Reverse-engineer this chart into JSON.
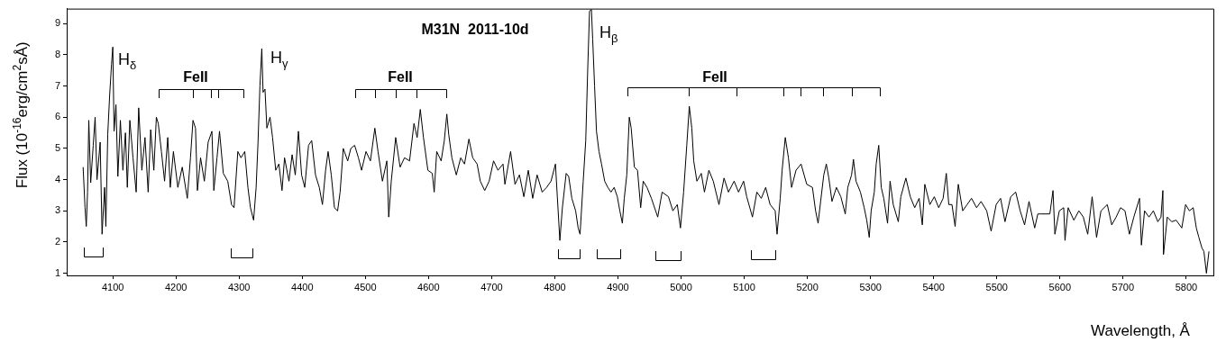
{
  "chart_data": {
    "type": "line",
    "title": "M31N  2011-10d",
    "xlabel": "Wavelength, Å",
    "ylabel": "Flux (10$^{-16}$erg/cm$^{2}$sÅ)",
    "series": [
      {
        "color": "#000000",
        "x": [
          4053,
          4056,
          4058,
          4060,
          4062,
          4065,
          4069,
          4072,
          4075,
          4080,
          4083,
          4087,
          4089,
          4092,
          4095,
          4098,
          4100,
          4102,
          4105,
          4108,
          4112,
          4116,
          4120,
          4123,
          4127,
          4132,
          4137,
          4141,
          4146,
          4151,
          4156,
          4160,
          4165,
          4169,
          4172,
          4177,
          4182,
          4187,
          4191,
          4196,
          4203,
          4210,
          4218,
          4223,
          4227,
          4231,
          4234,
          4239,
          4245,
          4251,
          4257,
          4260,
          4265,
          4269,
          4275,
          4282,
          4288,
          4292,
          4298,
          4303,
          4309,
          4314,
          4318,
          4323,
          4327,
          4330,
          4333,
          4336,
          4338,
          4341,
          4344,
          4349,
          4353,
          4358,
          4363,
          4368,
          4372,
          4379,
          4384,
          4389,
          4394,
          4399,
          4404,
          4410,
          4415,
          4421,
          4427,
          4432,
          4437,
          4441,
          4446,
          4451,
          4456,
          4460,
          4465,
          4472,
          4477,
          4483,
          4489,
          4494,
          4501,
          4508,
          4515,
          4520,
          4527,
          4534,
          4537,
          4541,
          4548,
          4555,
          4562,
          4570,
          4577,
          4582,
          4587,
          4592,
          4599,
          4606,
          4609,
          4613,
          4620,
          4625,
          4629,
          4632,
          4637,
          4644,
          4651,
          4657,
          4664,
          4670,
          4677,
          4682,
          4689,
          4696,
          4703,
          4710,
          4718,
          4721,
          4730,
          4737,
          4744,
          4751,
          4758,
          4765,
          4772,
          4780,
          4787,
          4794,
          4801,
          4804,
          4808,
          4812,
          4818,
          4822,
          4827,
          4833,
          4837,
          4840,
          4845,
          4849,
          4852,
          4855,
          4858,
          4860,
          4863,
          4866,
          4870,
          4874,
          4879,
          4884,
          4889,
          4894,
          4899,
          4903,
          4907,
          4910,
          4914,
          4918,
          4921,
          4926,
          4931,
          4936,
          4940,
          4946,
          4953,
          4963,
          4970,
          4980,
          4987,
          4994,
          4999,
          5004,
          5009,
          5013,
          5017,
          5020,
          5025,
          5032,
          5037,
          5044,
          5051,
          5060,
          5068,
          5075,
          5084,
          5091,
          5099,
          5104,
          5113,
          5120,
          5127,
          5134,
          5141,
          5149,
          5152,
          5157,
          5160,
          5165,
          5170,
          5175,
          5182,
          5190,
          5199,
          5208,
          5213,
          5217,
          5221,
          5226,
          5230,
          5234,
          5239,
          5246,
          5253,
          5260,
          5264,
          5270,
          5273,
          5277,
          5284,
          5290,
          5294,
          5298,
          5301,
          5306,
          5309,
          5313,
          5317,
          5321,
          5327,
          5331,
          5336,
          5344,
          5348,
          5356,
          5363,
          5370,
          5377,
          5382,
          5386,
          5394,
          5401,
          5408,
          5415,
          5420,
          5424,
          5429,
          5434,
          5439,
          5446,
          5453,
          5460,
          5468,
          5475,
          5484,
          5491,
          5499,
          5506,
          5513,
          5522,
          5530,
          5537,
          5544,
          5551,
          5560,
          5565,
          5570,
          5584,
          5589,
          5592,
          5599,
          5606,
          5608,
          5613,
          5622,
          5630,
          5637,
          5644,
          5651,
          5658,
          5665,
          5675,
          5682,
          5689,
          5696,
          5703,
          5710,
          5717,
          5726,
          5729,
          5734,
          5741,
          5748,
          5755,
          5760,
          5763,
          5764,
          5770,
          5777,
          5784,
          5793,
          5799,
          5805,
          5811,
          5816,
          5820,
          5825,
          5828,
          5832,
          5836
        ],
        "values": [
          4.4,
          3.1,
          2.5,
          3.6,
          5.9,
          3.9,
          5.1,
          6.0,
          4.0,
          5.2,
          2.25,
          3.75,
          2.5,
          5.45,
          6.7,
          7.7,
          8.25,
          5.55,
          6.4,
          4.1,
          5.9,
          4.3,
          5.5,
          3.75,
          5.9,
          4.7,
          3.6,
          6.3,
          4.3,
          5.35,
          3.6,
          5.6,
          4.3,
          6.0,
          5.8,
          4.9,
          3.95,
          5.35,
          3.75,
          4.9,
          3.75,
          4.4,
          3.4,
          4.7,
          5.9,
          5.65,
          3.65,
          4.7,
          3.95,
          5.2,
          5.55,
          3.65,
          4.7,
          5.55,
          4.2,
          3.95,
          3.2,
          3.1,
          4.9,
          4.7,
          4.9,
          3.75,
          3.1,
          2.7,
          3.75,
          5.2,
          7.0,
          8.2,
          6.8,
          6.9,
          5.65,
          6.0,
          5.35,
          4.3,
          4.5,
          3.65,
          4.7,
          3.95,
          4.8,
          4.15,
          5.55,
          4.15,
          3.75,
          5.1,
          5.25,
          4.15,
          3.75,
          3.2,
          4.3,
          4.9,
          4.15,
          3.1,
          3.0,
          3.6,
          5.0,
          4.6,
          5.0,
          5.1,
          4.7,
          4.3,
          4.9,
          4.6,
          5.65,
          4.9,
          3.95,
          4.6,
          2.8,
          3.95,
          5.35,
          4.4,
          4.7,
          4.6,
          5.8,
          5.35,
          6.25,
          5.35,
          4.3,
          4.2,
          3.6,
          4.9,
          4.6,
          5.25,
          6.1,
          5.45,
          4.7,
          4.15,
          4.7,
          4.5,
          5.3,
          4.7,
          4.5,
          3.95,
          3.65,
          3.95,
          4.6,
          4.3,
          4.5,
          3.85,
          4.9,
          3.85,
          4.15,
          3.45,
          4.3,
          3.4,
          4.15,
          3.6,
          3.75,
          3.95,
          4.5,
          3.45,
          2.05,
          3.1,
          4.2,
          4.1,
          3.4,
          3.0,
          2.45,
          2.25,
          3.95,
          5.25,
          7.45,
          9.4,
          9.45,
          8.5,
          7.0,
          5.55,
          4.9,
          4.5,
          3.95,
          3.75,
          3.6,
          3.75,
          3.45,
          3.0,
          2.6,
          3.4,
          4.15,
          6.0,
          5.65,
          4.4,
          4.3,
          3.1,
          3.95,
          3.75,
          3.4,
          2.8,
          3.6,
          3.45,
          3.0,
          3.2,
          2.45,
          3.6,
          5.1,
          6.35,
          5.65,
          4.6,
          3.95,
          4.2,
          3.6,
          4.3,
          3.95,
          3.2,
          4.05,
          3.6,
          3.95,
          3.6,
          3.95,
          3.45,
          2.8,
          3.6,
          3.4,
          3.75,
          3.2,
          3.0,
          2.25,
          3.4,
          4.3,
          5.35,
          4.7,
          3.75,
          4.3,
          4.5,
          3.85,
          3.75,
          3.0,
          2.6,
          3.3,
          4.15,
          4.5,
          4.05,
          3.3,
          3.75,
          3.45,
          2.9,
          3.75,
          4.15,
          4.65,
          3.95,
          3.6,
          3.1,
          2.7,
          2.15,
          3.0,
          3.6,
          4.5,
          5.1,
          3.75,
          3.4,
          2.6,
          3.95,
          3.2,
          2.65,
          3.45,
          4.05,
          3.45,
          3.1,
          3.4,
          2.55,
          3.85,
          3.2,
          3.45,
          3.1,
          3.4,
          4.2,
          3.2,
          3.2,
          2.5,
          3.85,
          3.0,
          3.2,
          3.4,
          3.1,
          3.3,
          3.0,
          2.35,
          3.2,
          3.4,
          2.65,
          3.45,
          3.6,
          3.0,
          2.55,
          3.3,
          2.45,
          2.9,
          2.9,
          2.9,
          3.65,
          2.25,
          3.0,
          3.1,
          2.05,
          3.1,
          2.7,
          3.0,
          2.8,
          2.25,
          3.45,
          2.15,
          3.0,
          3.2,
          2.55,
          2.8,
          3.1,
          3.0,
          2.25,
          2.8,
          3.4,
          1.9,
          3.0,
          2.8,
          3.0,
          2.65,
          2.8,
          3.65,
          1.6,
          2.8,
          2.65,
          2.7,
          2.45,
          3.2,
          3.0,
          3.1,
          2.45,
          2.15,
          1.8,
          1.7,
          1.0,
          1.7
        ]
      }
    ],
    "xlim": [
      4027,
      5843
    ],
    "ylim": [
      0.93,
      9.48
    ],
    "xticks": [
      4100,
      4200,
      4300,
      4400,
      4500,
      4600,
      4700,
      4800,
      4900,
      5000,
      5100,
      5200,
      5300,
      5400,
      5500,
      5600,
      5700,
      5800
    ],
    "yticks": [
      1,
      2,
      3,
      4,
      5,
      6,
      7,
      8,
      9
    ],
    "grid": false,
    "legend": false,
    "line_style": "solid",
    "marker": "none",
    "annotations": [
      "H$_{δ}$",
      "H$_{γ}$",
      "H$_{β}$",
      "FeII",
      "FeII",
      "FeII"
    ]
  }
}
